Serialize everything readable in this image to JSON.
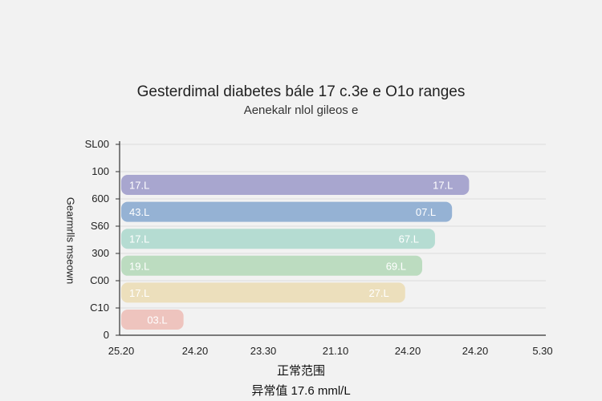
{
  "chart_data": {
    "type": "bar",
    "orientation": "horizontal",
    "title": "Gesterdimal diabetes bále 17 c.3e e O1o ranges",
    "subtitle": "Aenekalr nlol gileos e",
    "ylabel": "Gearmrlls mseown",
    "xlabel": "正常范围",
    "note": "异常值 17.6 mml/L",
    "y_ticks": [
      "0",
      "C10",
      "C00",
      "300",
      "S60",
      "600",
      "100",
      "SL00"
    ],
    "x_ticks": [
      "25.20",
      "24.20",
      "23.30",
      "21.10",
      "24.20",
      "24.20",
      "5.30"
    ],
    "xlim": [
      0,
      100
    ],
    "grid": true,
    "legend": "none",
    "bars": [
      {
        "value": 82,
        "left_label": "17.L",
        "right_label": "17.L",
        "color": "#a8a6cf"
      },
      {
        "value": 78,
        "left_label": "43.L",
        "right_label": "07.L",
        "color": "#95b2d4"
      },
      {
        "value": 74,
        "left_label": "17.L",
        "right_label": "67.L",
        "color": "#b5dcd2"
      },
      {
        "value": 71,
        "left_label": "19.L",
        "right_label": "69.L",
        "color": "#bcdcc0"
      },
      {
        "value": 67,
        "left_label": "17.L",
        "right_label": "27.L",
        "color": "#ecdfbc"
      },
      {
        "value": 15,
        "left_label": "",
        "right_label": "03.L",
        "color": "#eec4be"
      }
    ]
  }
}
